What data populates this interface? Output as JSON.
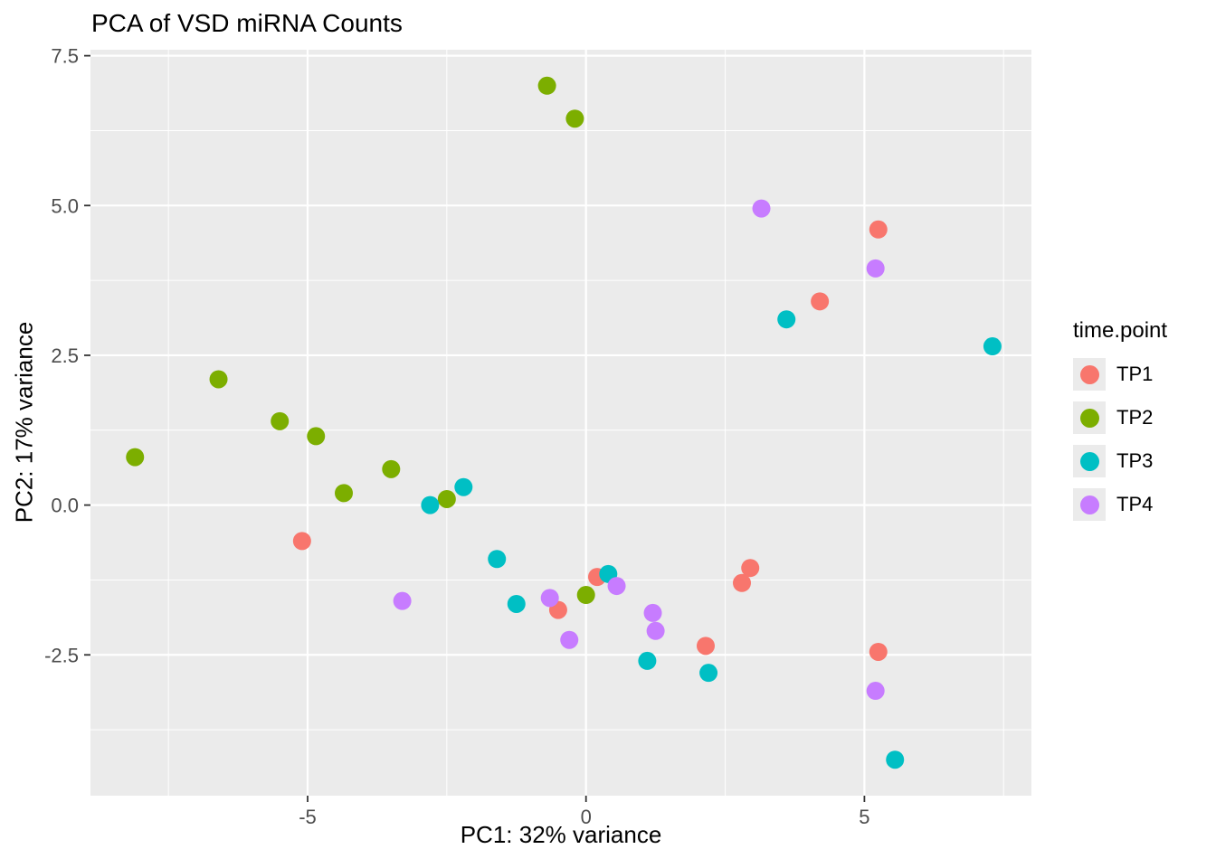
{
  "chart_data": {
    "type": "scatter",
    "title": "PCA of VSD miRNA Counts",
    "xlabel": "PC1: 32% variance",
    "ylabel": "PC2: 17% variance",
    "legend_title": "time.point",
    "legend_position": "right",
    "grid": true,
    "xlim": [
      -8.9,
      8.0
    ],
    "ylim": [
      -4.85,
      7.6
    ],
    "x_ticks": {
      "values": [
        -5,
        0,
        5
      ],
      "labels": [
        "-5",
        "0",
        "5"
      ]
    },
    "y_ticks": {
      "values": [
        7.5,
        5.0,
        2.5,
        0.0,
        -2.5
      ],
      "labels": [
        "7.5",
        "5.0",
        "2.5",
        "0.0",
        "-2.5"
      ]
    },
    "x_minor": [
      -7.5,
      -2.5,
      2.5,
      7.5
    ],
    "y_minor": [
      6.25,
      3.75,
      1.25,
      -1.25,
      -3.75
    ],
    "style": {
      "panel_bg": "#EBEBEB",
      "grid_color": "#FFFFFF",
      "tick_color": "#333333",
      "axis_text_color": "#4D4D4D",
      "legend_key_bg": "#EBEBEB",
      "point_radius": 10
    },
    "series": [
      {
        "name": "TP1",
        "color": "#F8766D",
        "points": [
          [
            -5.1,
            -0.6
          ],
          [
            0.2,
            -1.2
          ],
          [
            -0.5,
            -1.75
          ],
          [
            2.95,
            -1.05
          ],
          [
            2.8,
            -1.3
          ],
          [
            2.15,
            -2.35
          ],
          [
            4.2,
            3.4
          ],
          [
            5.25,
            4.6
          ],
          [
            5.25,
            -2.45
          ]
        ]
      },
      {
        "name": "TP2",
        "color": "#7CAE00",
        "points": [
          [
            -8.1,
            0.8
          ],
          [
            -6.6,
            2.1
          ],
          [
            -5.5,
            1.4
          ],
          [
            -4.85,
            1.15
          ],
          [
            -4.35,
            0.2
          ],
          [
            -3.5,
            0.6
          ],
          [
            -2.5,
            0.1
          ],
          [
            -0.7,
            7.0
          ],
          [
            -0.2,
            6.45
          ],
          [
            0.0,
            -1.5
          ]
        ]
      },
      {
        "name": "TP3",
        "color": "#00BFC4",
        "points": [
          [
            -2.8,
            0.0
          ],
          [
            -2.2,
            0.3
          ],
          [
            -1.6,
            -0.9
          ],
          [
            -1.25,
            -1.65
          ],
          [
            0.4,
            -1.15
          ],
          [
            1.1,
            -2.6
          ],
          [
            2.2,
            -2.8
          ],
          [
            3.6,
            3.1
          ],
          [
            7.3,
            2.65
          ],
          [
            5.55,
            -4.25
          ]
        ]
      },
      {
        "name": "TP4",
        "color": "#C77CFF",
        "points": [
          [
            3.15,
            4.95
          ],
          [
            5.2,
            3.95
          ],
          [
            -3.3,
            -1.6
          ],
          [
            -0.65,
            -1.55
          ],
          [
            0.55,
            -1.35
          ],
          [
            1.2,
            -1.8
          ],
          [
            1.25,
            -2.1
          ],
          [
            -0.3,
            -2.25
          ],
          [
            5.2,
            -3.1
          ]
        ]
      }
    ]
  }
}
